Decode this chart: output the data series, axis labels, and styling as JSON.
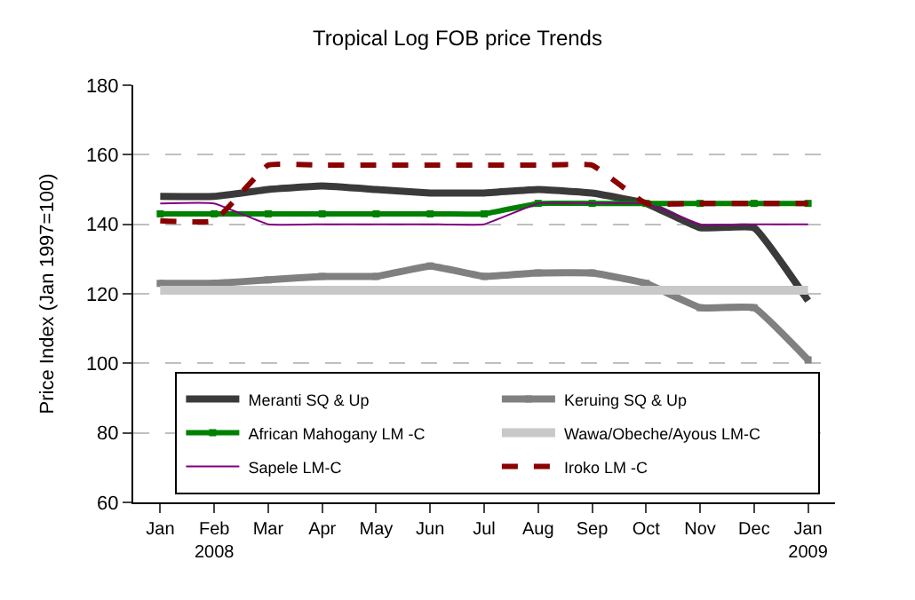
{
  "chart_data": {
    "type": "line",
    "title": "Tropical Log FOB price Trends",
    "ylabel": "Price Index (Jan 1997=100)",
    "categories": [
      "Jan",
      "Feb\n2008",
      "Mar",
      "Apr",
      "May",
      "Jun",
      "Jul",
      "Aug",
      "Sep",
      "Oct",
      "Nov",
      "Dec",
      "Jan\n2009"
    ],
    "ylim": [
      60,
      180
    ],
    "yticks": [
      60,
      80,
      100,
      120,
      140,
      160,
      180
    ],
    "grid": "y",
    "legend": "bottom",
    "marker": "none",
    "series": [
      {
        "name": "Meranti SQ & Up",
        "color": "#3a3a3a",
        "values": [
          148,
          148,
          150,
          151,
          150,
          149,
          149,
          150,
          149,
          146,
          139,
          139,
          118
        ]
      },
      {
        "name": "Keruing SQ & Up",
        "color": "#808080",
        "marker": "square",
        "values": [
          123,
          123,
          124,
          125,
          125,
          128,
          125,
          126,
          126,
          123,
          116,
          116,
          101
        ]
      },
      {
        "name": "African Mahogany LM -C",
        "color": "#008000",
        "marker": "square",
        "values": [
          143,
          143,
          143,
          143,
          143,
          143,
          143,
          146,
          146,
          146,
          146,
          146,
          146
        ]
      },
      {
        "name": "Wawa/Obeche/Ayous LM-C",
        "color": "#c8c8c8",
        "values": [
          121,
          121,
          121,
          121,
          121,
          121,
          121,
          121,
          121,
          121,
          121,
          121,
          121
        ]
      },
      {
        "name": "Sapele LM-C",
        "color": "#800080",
        "values": [
          146,
          146,
          140,
          140,
          140,
          140,
          140,
          146,
          146,
          146,
          140,
          140,
          140
        ]
      },
      {
        "name": "Iroko LM -C",
        "color": "#8b0000",
        "line_style": "dashed",
        "values": [
          141,
          141,
          157,
          157,
          157,
          157,
          157,
          157,
          157,
          146,
          146,
          146,
          146
        ]
      }
    ]
  }
}
